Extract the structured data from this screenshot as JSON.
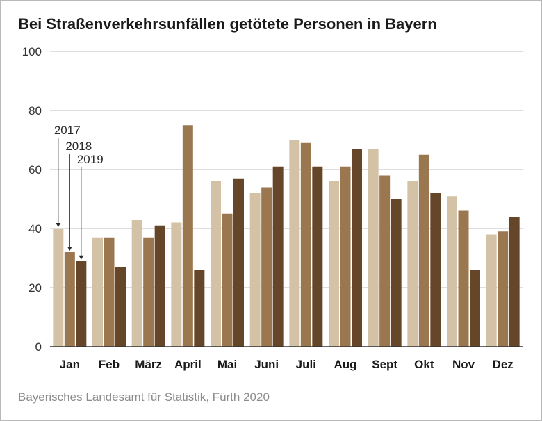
{
  "title": "Bei Straßenverkehrsunfällen getötete Personen in Bayern",
  "source": "Bayerisches Landesamt für Statistik, Fürth 2020",
  "chart_data": {
    "type": "bar",
    "title": "Bei Straßenverkehrsunfällen getötete Personen in Bayern",
    "xlabel": "",
    "ylabel": "",
    "ylim": [
      0,
      100
    ],
    "yticks": [
      0,
      20,
      40,
      60,
      80,
      100
    ],
    "grid": true,
    "categories": [
      "Jan",
      "Feb",
      "März",
      "April",
      "Mai",
      "Juni",
      "Juli",
      "Aug",
      "Sept",
      "Okt",
      "Nov",
      "Dez"
    ],
    "series": [
      {
        "name": "2017",
        "color": "#d4c2a7",
        "values": [
          40,
          37,
          43,
          42,
          56,
          52,
          70,
          56,
          67,
          56,
          51,
          38
        ]
      },
      {
        "name": "2018",
        "color": "#9b7750",
        "values": [
          32,
          37,
          37,
          75,
          45,
          54,
          69,
          61,
          58,
          65,
          46,
          39
        ]
      },
      {
        "name": "2019",
        "color": "#654628",
        "values": [
          29,
          27,
          41,
          26,
          57,
          61,
          61,
          67,
          50,
          52,
          26,
          44
        ]
      }
    ],
    "legend_placement": "annotations on first category"
  }
}
